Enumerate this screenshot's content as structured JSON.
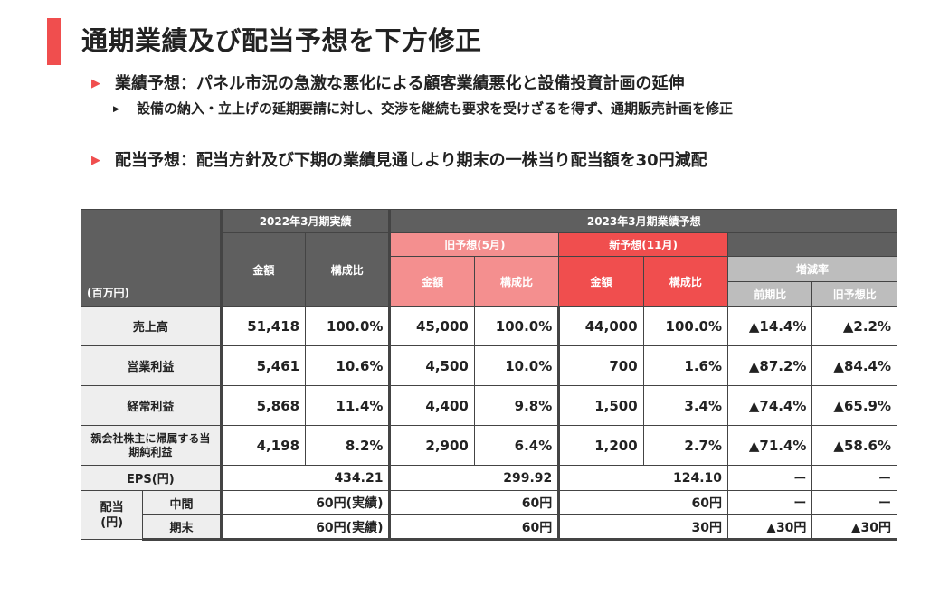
{
  "title": "通期業績及び配当予想を下方修正",
  "bullets": [
    {
      "text": "業績予想：パネル市況の急激な悪化による顧客業績悪化と設備投資計画の延伸",
      "sub": "設備の納入・立上げの延期要請に対し、交渉を継続も要求を受けざるを得ず、通期販売計画を修正"
    },
    {
      "text": "配当予想：配当方針及び下期の業績見通しより期末の一株当り配当額を30円減配"
    }
  ],
  "table": {
    "unit": "(百万円)",
    "h_fy2022": "2022年3月期実績",
    "h_fy2023": "2023年3月期業績予想",
    "h_old": "旧予想(5月)",
    "h_new": "新予想(11月)",
    "h_change": "増減率",
    "h_amount": "金額",
    "h_ratio": "構成比",
    "h_vs_prev": "前期比",
    "h_vs_old": "旧予想比",
    "rows": [
      {
        "label": "売上高",
        "cells": [
          "51,418",
          "100.0%",
          "45,000",
          "100.0%",
          "44,000",
          "100.0%",
          "▲14.4%",
          "▲2.2%"
        ]
      },
      {
        "label": "営業利益",
        "cells": [
          "5,461",
          "10.6%",
          "4,500",
          "10.0%",
          "700",
          "1.6%",
          "▲87.2%",
          "▲84.4%"
        ]
      },
      {
        "label": "経常利益",
        "cells": [
          "5,868",
          "11.4%",
          "4,400",
          "9.8%",
          "1,500",
          "3.4%",
          "▲74.4%",
          "▲65.9%"
        ]
      },
      {
        "label": "親会社株主に帰属する当期純利益",
        "cells": [
          "4,198",
          "8.2%",
          "2,900",
          "6.4%",
          "1,200",
          "2.7%",
          "▲71.4%",
          "▲58.6%"
        ]
      }
    ],
    "eps": {
      "label": "EPS(円)",
      "cells": [
        "434.21",
        "299.92",
        "124.10",
        "ー",
        "ー"
      ]
    },
    "div_label": "配当\n(円)",
    "div_rows": [
      {
        "label": "中間",
        "cells": [
          "60円(実績)",
          "60円",
          "60円",
          "ー",
          "ー"
        ]
      },
      {
        "label": "期末",
        "cells": [
          "60円(実績)",
          "60円",
          "30円",
          "▲30円",
          "▲30円"
        ]
      }
    ]
  },
  "colors": {
    "accent": "#f04e4e",
    "old_forecast": "#f48f8f",
    "header_dark": "#5f5f5f",
    "header_gray": "#bdbdbd"
  }
}
